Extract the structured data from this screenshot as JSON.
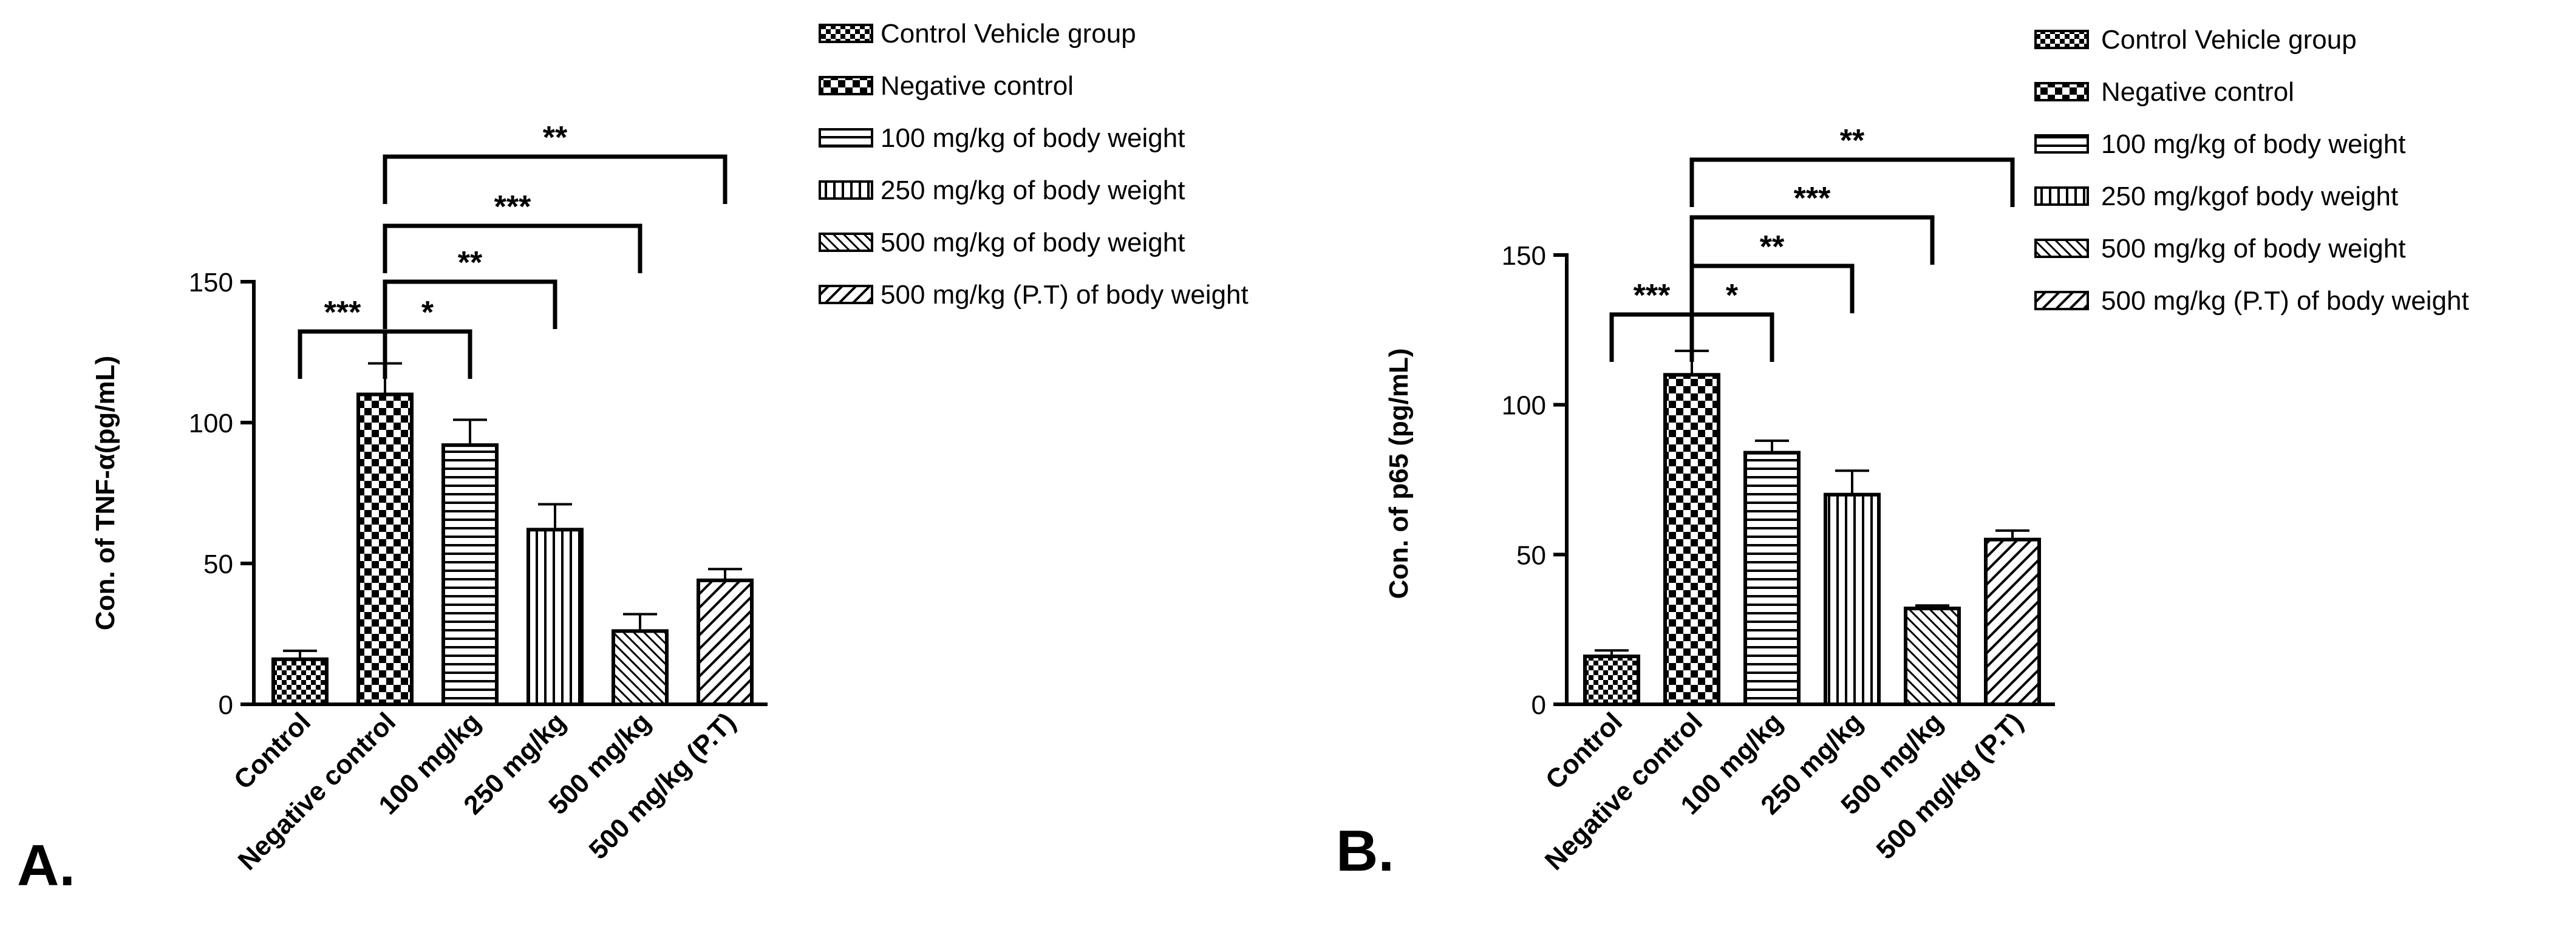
{
  "figure": {
    "panels": [
      "A.",
      "B."
    ]
  },
  "chart_data": [
    {
      "type": "bar",
      "panel_label": "A.",
      "title": "",
      "xlabel": "",
      "ylabel": "Con. of TNF-α(pg/mL)",
      "ylim": [
        0,
        150
      ],
      "yticks": [
        0,
        50,
        100,
        150
      ],
      "categories": [
        "Control",
        "Negative control",
        "100 mg/kg",
        "250 mg/kg",
        "500 mg/kg",
        "500 mg/kg (P.T)"
      ],
      "values": [
        16,
        110,
        92,
        62,
        26,
        44
      ],
      "errors": [
        3,
        11,
        9,
        9,
        6,
        4
      ],
      "patterns": [
        "checker",
        "checker-large",
        "hlines",
        "vlines",
        "diag-fine",
        "diag-back"
      ],
      "legend": [
        "Control Vehicle group",
        "Negative control",
        "100 mg/kg of body weight",
        "250 mg/kg of body weight",
        "500 mg/kg of body weight",
        "500 mg/kg (P.T) of body weight"
      ],
      "significance": [
        {
          "from": 0,
          "to": 1,
          "label": "***",
          "level": 1
        },
        {
          "from": 1,
          "to": 2,
          "label": "*",
          "level": 1
        },
        {
          "from": 1,
          "to": 3,
          "label": "**",
          "level": 2
        },
        {
          "from": 1,
          "to": 4,
          "label": "***",
          "level": 3
        },
        {
          "from": 1,
          "to": 5,
          "label": "**",
          "level": 4
        }
      ]
    },
    {
      "type": "bar",
      "panel_label": "B.",
      "title": "",
      "xlabel": "",
      "ylabel": "Con. of p65 (pg/mL)",
      "ylim": [
        0,
        150
      ],
      "yticks": [
        0,
        50,
        100,
        150
      ],
      "categories": [
        "Control",
        "Negative control",
        "100 mg/kg",
        "250 mg/kg",
        "500 mg/kg",
        "500 mg/kg (P.T)"
      ],
      "values": [
        16,
        110,
        84,
        70,
        32,
        55
      ],
      "errors": [
        2,
        8,
        4,
        8,
        1,
        3
      ],
      "patterns": [
        "checker",
        "checker-large",
        "hlines",
        "vlines",
        "diag-fine",
        "diag-back"
      ],
      "legend": [
        "Control Vehicle group",
        "Negative control",
        "100 mg/kg of body weight",
        "250 mg/kgof body weight",
        "500 mg/kg of body weight",
        "500 mg/kg (P.T) of body weight"
      ],
      "significance": [
        {
          "from": 0,
          "to": 1,
          "label": "***",
          "level": 1
        },
        {
          "from": 1,
          "to": 2,
          "label": "*",
          "level": 1
        },
        {
          "from": 1,
          "to": 3,
          "label": "**",
          "level": 2
        },
        {
          "from": 1,
          "to": 4,
          "label": "***",
          "level": 3
        },
        {
          "from": 1,
          "to": 5,
          "label": "**",
          "level": 4
        }
      ]
    }
  ]
}
